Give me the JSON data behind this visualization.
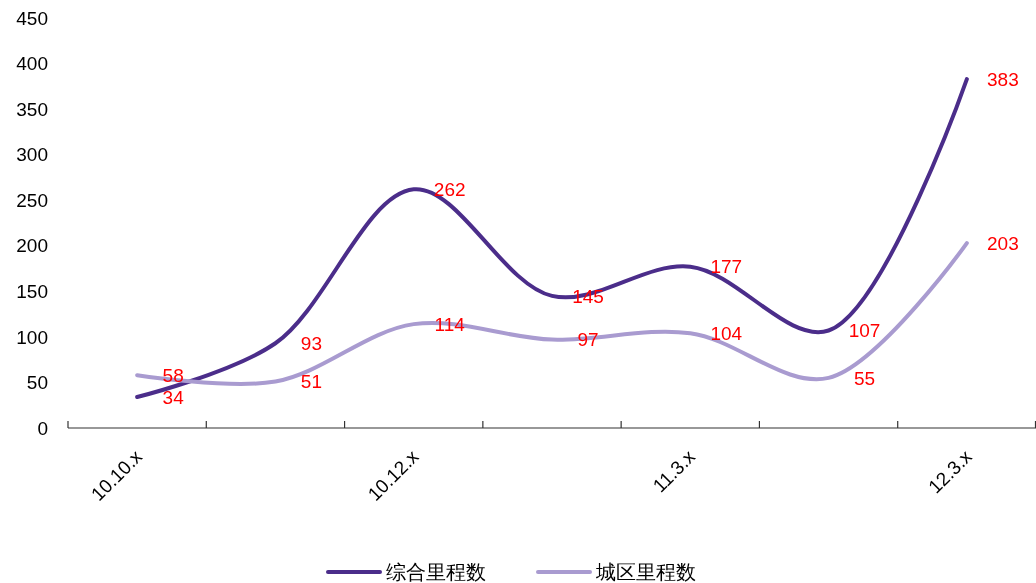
{
  "chart_data": {
    "type": "line",
    "categories": [
      "10.10.x",
      null,
      "10.12.x",
      null,
      "11.3.x",
      null,
      "12.3.x"
    ],
    "series": [
      {
        "name": "综合里程数",
        "color": "#4b2d8a",
        "values": [
          34,
          93,
          262,
          145,
          177,
          107,
          383
        ]
      },
      {
        "name": "城区里程数",
        "color": "#a99bd0",
        "values": [
          58,
          51,
          114,
          97,
          104,
          55,
          203
        ]
      }
    ],
    "ylim": [
      0,
      450
    ],
    "yticks": [
      0,
      50,
      100,
      150,
      200,
      250,
      300,
      350,
      400,
      450
    ],
    "data_labels": true,
    "legend": "bottom",
    "grid": false,
    "marker": "none",
    "line_style": "solid"
  }
}
